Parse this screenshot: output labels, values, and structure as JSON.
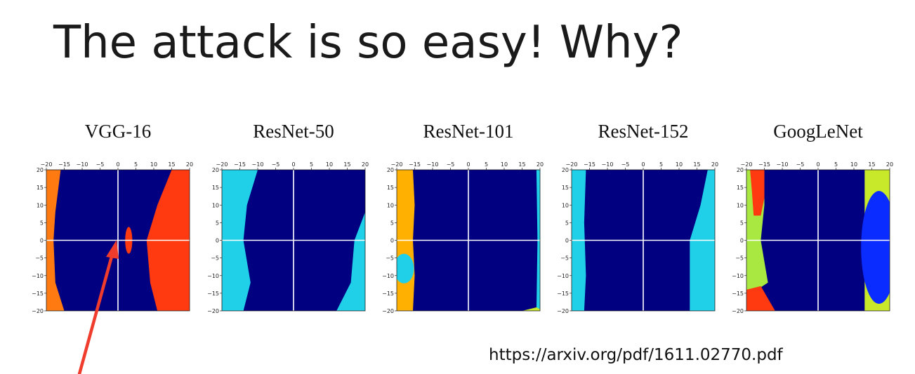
{
  "slide": {
    "title": "The attack is so easy! Why?",
    "source_url": "https://arxiv.org/pdf/1611.02770.pdf"
  },
  "colors": {
    "navy": "#000080",
    "cyan": "#20d0e8",
    "orange": "#ff7a10",
    "red_orange": "#ff3a10",
    "amber": "#ffb000",
    "yellow_green": "#c8e82a",
    "green_yellow": "#a8e840",
    "blue": "#0a2cff",
    "axis_line": "#ffffff",
    "arrow": "#f03c2c"
  },
  "chart_data": [
    {
      "type": "heatmap",
      "title": "VGG-16",
      "xlim": [
        -20,
        20
      ],
      "ylim": [
        -20,
        20
      ],
      "xticks": [
        "−20",
        "−15",
        "−10",
        "−5",
        "0",
        "5",
        "10",
        "15",
        "20"
      ],
      "yticks": [
        "20",
        "15",
        "10",
        "5",
        "0",
        "−5",
        "−10",
        "−15",
        "−20"
      ],
      "regions": [
        {
          "color": "orange",
          "boundary": [
            [
              -20,
              20
            ],
            [
              -16,
              20
            ],
            [
              -17.5,
              8
            ],
            [
              -18,
              0
            ],
            [
              -17.5,
              -12
            ],
            [
              -15,
              -20
            ],
            [
              -20,
              -20
            ]
          ]
        },
        {
          "color": "red_orange",
          "boundary": [
            [
              20,
              20
            ],
            [
              15,
              20
            ],
            [
              11,
              10
            ],
            [
              8,
              0
            ],
            [
              9,
              -12
            ],
            [
              11,
              -20
            ],
            [
              20,
              -20
            ]
          ]
        },
        {
          "color": "red_orange",
          "ellipse": {
            "cx": 3,
            "cy": 0,
            "rx": 1,
            "ry": 3.8
          }
        }
      ]
    },
    {
      "type": "heatmap",
      "title": "ResNet-50",
      "xlim": [
        -20,
        20
      ],
      "ylim": [
        -20,
        20
      ],
      "xticks": [
        "−20",
        "−15",
        "−10",
        "−5",
        "0",
        "5",
        "10",
        "15",
        "20"
      ],
      "yticks": [
        "20",
        "15",
        "10",
        "5",
        "0",
        "−5",
        "−10",
        "−15",
        "−20"
      ],
      "regions": [
        {
          "color": "cyan",
          "boundary": [
            [
              -20,
              20
            ],
            [
              -10,
              20
            ],
            [
              -13,
              10
            ],
            [
              -14,
              0
            ],
            [
              -12,
              -12
            ],
            [
              -14,
              -20
            ],
            [
              -20,
              -20
            ]
          ]
        },
        {
          "color": "cyan",
          "boundary": [
            [
              20,
              8
            ],
            [
              17,
              0
            ],
            [
              16,
              -12
            ],
            [
              12,
              -20
            ],
            [
              20,
              -20
            ]
          ]
        }
      ]
    },
    {
      "type": "heatmap",
      "title": "ResNet-101",
      "xlim": [
        -20,
        20
      ],
      "ylim": [
        -20,
        20
      ],
      "xticks": [
        "−20",
        "−15",
        "−10",
        "−5",
        "0",
        "5",
        "10",
        "15",
        "20"
      ],
      "yticks": [
        "20",
        "15",
        "10",
        "5",
        "0",
        "−5",
        "−10",
        "−15",
        "−20"
      ],
      "regions": [
        {
          "color": "amber",
          "boundary": [
            [
              -20,
              20
            ],
            [
              -15.5,
              20
            ],
            [
              -15,
              10
            ],
            [
              -15.5,
              0
            ],
            [
              -15,
              -10
            ],
            [
              -15.5,
              -20
            ],
            [
              -20,
              -20
            ]
          ]
        },
        {
          "color": "cyan",
          "ellipse": {
            "cx": -18,
            "cy": -8,
            "rx": 2.8,
            "ry": 4.2
          }
        },
        {
          "color": "cyan",
          "boundary": [
            [
              20,
              20
            ],
            [
              19,
              20
            ],
            [
              19.3,
              0
            ],
            [
              19,
              -20
            ],
            [
              20,
              -20
            ]
          ]
        },
        {
          "color": "yellow_green",
          "boundary": [
            [
              15,
              -20
            ],
            [
              19,
              -19
            ],
            [
              20,
              -19.5
            ],
            [
              20,
              -20
            ]
          ]
        }
      ]
    },
    {
      "type": "heatmap",
      "title": "ResNet-152",
      "xlim": [
        -20,
        20
      ],
      "ylim": [
        -20,
        20
      ],
      "xticks": [
        "−20",
        "−15",
        "−10",
        "−5",
        "0",
        "5",
        "10",
        "15",
        "20"
      ],
      "yticks": [
        "20",
        "15",
        "10",
        "5",
        "0",
        "−5",
        "−10",
        "−15",
        "−20"
      ],
      "regions": [
        {
          "color": "cyan",
          "boundary": [
            [
              -20,
              20
            ],
            [
              -16,
              20
            ],
            [
              -16.5,
              5
            ],
            [
              -16,
              -10
            ],
            [
              -16.5,
              -20
            ],
            [
              -20,
              -20
            ]
          ]
        },
        {
          "color": "cyan",
          "boundary": [
            [
              20,
              20
            ],
            [
              18,
              20
            ],
            [
              16,
              10
            ],
            [
              13,
              0
            ],
            [
              13,
              -20
            ],
            [
              20,
              -20
            ]
          ]
        }
      ]
    },
    {
      "type": "heatmap",
      "title": "GoogLeNet",
      "xlim": [
        -20,
        20
      ],
      "ylim": [
        -20,
        20
      ],
      "xticks": [
        "−20",
        "−15",
        "−10",
        "−5",
        "0",
        "5",
        "10",
        "15",
        "20"
      ],
      "yticks": [
        "20",
        "15",
        "10",
        "5",
        "0",
        "−5",
        "−10",
        "−15",
        "−20"
      ],
      "regions": [
        {
          "color": "green_yellow",
          "boundary": [
            [
              -20,
              20
            ],
            [
              -15,
              20
            ],
            [
              -15,
              10
            ],
            [
              -16,
              0
            ],
            [
              -14,
              -12
            ],
            [
              -17,
              -14
            ],
            [
              -20,
              -14
            ]
          ]
        },
        {
          "color": "red_orange",
          "boundary": [
            [
              -19,
              20
            ],
            [
              -15,
              20
            ],
            [
              -15,
              12
            ],
            [
              -16,
              7
            ],
            [
              -18,
              7
            ],
            [
              -18.5,
              14
            ]
          ]
        },
        {
          "color": "red_orange",
          "boundary": [
            [
              -20,
              -14
            ],
            [
              -16,
              -13
            ],
            [
              -12,
              -20
            ],
            [
              -20,
              -20
            ]
          ]
        },
        {
          "color": "yellow_green",
          "boundary": [
            [
              20,
              20
            ],
            [
              13,
              20
            ],
            [
              13,
              -20
            ],
            [
              20,
              -20
            ]
          ]
        },
        {
          "color": "blue",
          "ellipse": {
            "cx": 17,
            "cy": -2,
            "rx": 5,
            "ry": 16
          }
        }
      ]
    }
  ]
}
